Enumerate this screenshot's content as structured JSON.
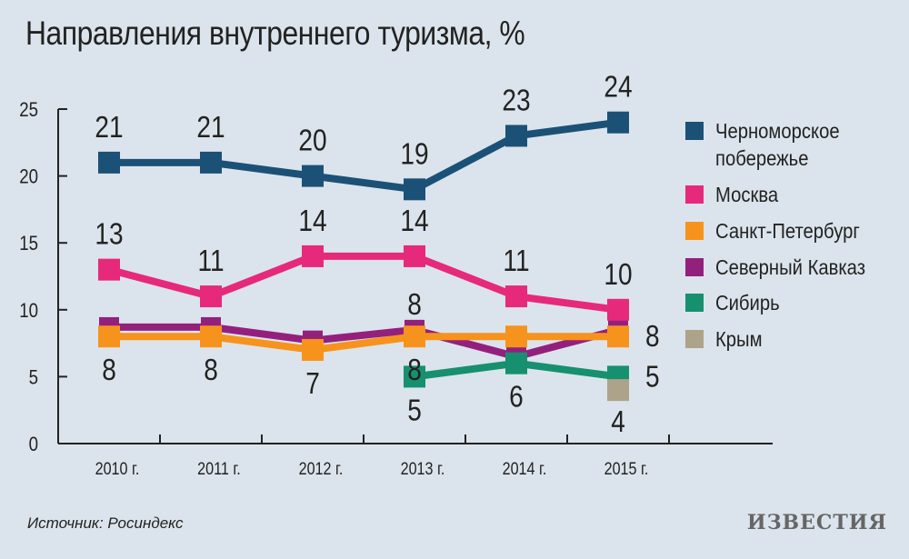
{
  "title": "Направления внутреннего туризма, %",
  "source": "Источник: Росиндекс",
  "logo": "ИЗВЕСТИЯ",
  "chart_data": {
    "type": "line",
    "title": "Направления внутреннего туризма, %",
    "categories": [
      "2010 г.",
      "2011 г.",
      "2012 г.",
      "2013 г.",
      "2014 г.",
      "2015 г."
    ],
    "ylim": [
      0,
      25
    ],
    "yticks": [
      "0",
      "5",
      "10",
      "15",
      "20",
      "25"
    ],
    "grid": false,
    "legend_position": "right",
    "series": [
      {
        "name": "Черноморское побережье",
        "color": "#1b5177",
        "values": [
          21,
          21,
          20,
          19,
          23,
          24
        ],
        "labels": [
          "21",
          "21",
          "20",
          "19",
          "23",
          "24"
        ]
      },
      {
        "name": "Москва",
        "color": "#e6297b",
        "values": [
          13,
          11,
          14,
          14,
          11,
          10
        ],
        "labels": [
          "13",
          "11",
          "14",
          "14",
          "11",
          "10"
        ]
      },
      {
        "name": "Санкт-Петербург",
        "color": "#f6931d",
        "values": [
          8,
          8,
          7,
          8,
          8,
          8
        ],
        "labels": [
          "8",
          "8",
          "7",
          "8",
          "",
          "8"
        ]
      },
      {
        "name": "Северный Кавказ",
        "color": "#94207e",
        "values": [
          8.7,
          8.7,
          7.7,
          8.5,
          6.5,
          8.5
        ],
        "labels": [
          "",
          "",
          "",
          "",
          "",
          ""
        ]
      },
      {
        "name": "Сибирь",
        "color": "#16906f",
        "values": [
          null,
          null,
          null,
          5,
          6,
          5
        ],
        "labels": [
          "",
          "",
          "",
          "5",
          "6",
          "5"
        ]
      },
      {
        "name": "Крым",
        "color": "#ada38a",
        "values": [
          null,
          null,
          null,
          null,
          null,
          4
        ],
        "labels": [
          "",
          "",
          "",
          "",
          "",
          "4"
        ]
      }
    ],
    "extra_labels": [
      {
        "series": "Санкт-Петербург",
        "index": 3,
        "text": "8"
      }
    ]
  }
}
